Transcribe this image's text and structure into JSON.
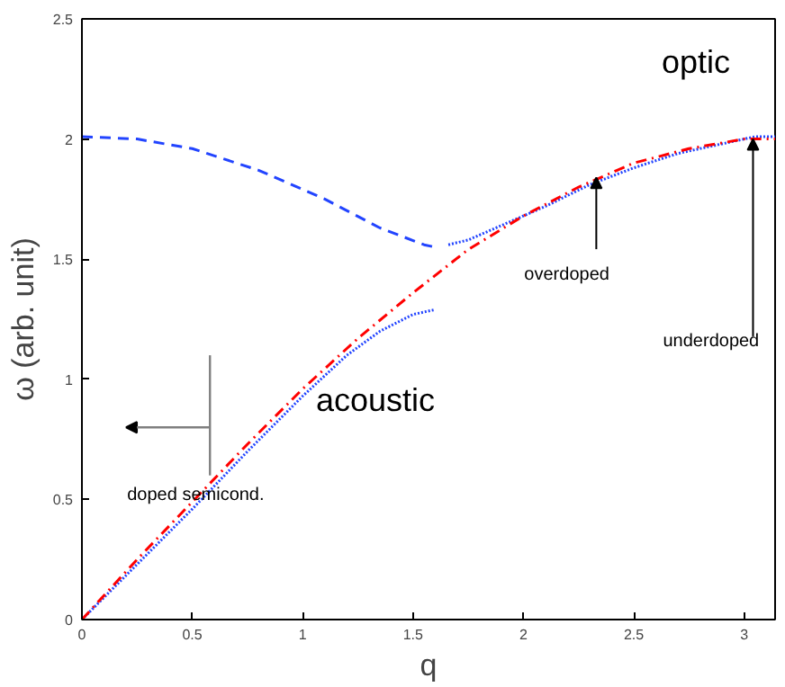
{
  "chart_data": {
    "type": "line",
    "xlabel": "q",
    "ylabel": "ω (arb. unit)",
    "xlim": [
      0,
      3.14
    ],
    "ylim": [
      0,
      2.5
    ],
    "xticks": [
      0,
      0.5,
      1,
      1.5,
      2,
      2.5,
      3
    ],
    "yticks": [
      0,
      0.5,
      1,
      1.5,
      2,
      2.5
    ],
    "grid": false,
    "marker": "none",
    "series": [
      {
        "color": "#2244ff",
        "line_style": "dashed",
        "x": [
          0,
          0.25,
          0.5,
          0.8,
          1.1,
          1.35,
          1.55,
          1.6
        ],
        "values": [
          2.01,
          2.0,
          1.96,
          1.87,
          1.75,
          1.63,
          1.56,
          1.55
        ]
      },
      {
        "color": "#2244ff",
        "line_style": "dotted",
        "x": [
          1.66,
          1.75,
          1.9,
          2.1,
          2.3,
          2.5,
          2.7,
          2.9,
          3.05,
          3.14
        ],
        "values": [
          1.56,
          1.58,
          1.64,
          1.72,
          1.81,
          1.88,
          1.94,
          1.98,
          2.01,
          2.01
        ]
      },
      {
        "color": "#2244ff",
        "line_style": "dotted",
        "x": [
          0,
          0.25,
          0.5,
          0.75,
          1.0,
          1.2,
          1.35,
          1.5,
          1.6
        ],
        "values": [
          0,
          0.23,
          0.46,
          0.7,
          0.93,
          1.1,
          1.2,
          1.27,
          1.29
        ]
      },
      {
        "color": "#ff0000",
        "line_style": "dashdot",
        "x": [
          0,
          0.25,
          0.5,
          0.75,
          1.0,
          1.25,
          1.5,
          1.75,
          2.0,
          2.25,
          2.5,
          2.75,
          3.0,
          3.14
        ],
        "values": [
          0,
          0.25,
          0.49,
          0.73,
          0.96,
          1.17,
          1.36,
          1.54,
          1.68,
          1.8,
          1.9,
          1.96,
          2.0,
          2.0
        ]
      }
    ],
    "annotations": [
      "optic",
      "acoustic",
      {
        "text": "overdoped",
        "x": 2.33,
        "y": 1.84
      },
      {
        "text": "underdoped",
        "x": 3.04,
        "y": 2.0
      },
      {
        "text": "doped semicond.",
        "x": 0.58,
        "y": 0.58
      }
    ]
  }
}
